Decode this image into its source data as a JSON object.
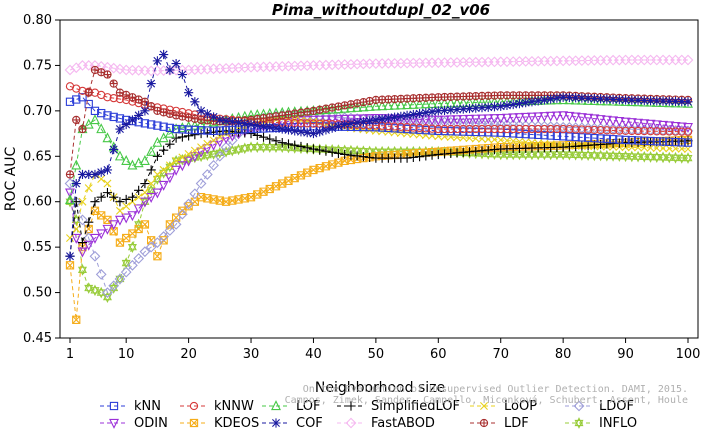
{
  "chart_data": {
    "type": "line",
    "title": "Pima_withoutdupl_02_v06",
    "xlabel": "Neighborhood size",
    "ylabel": "ROC AUC",
    "xlim": [
      1,
      100
    ],
    "ylim": [
      0.45,
      0.8
    ],
    "xticks": [
      1,
      10,
      20,
      30,
      40,
      50,
      60,
      70,
      80,
      90,
      100
    ],
    "yticks": [
      "0.45",
      "0.50",
      "0.55",
      "0.60",
      "0.65",
      "0.70",
      "0.75",
      "0.80"
    ],
    "grid": false,
    "legend_position": "bottom",
    "credit": "Campos, Zimek, Sander, Campello, Micenková, Schubert, Assent, Houle",
    "credit_line1": "On the Evaluation of Unsupervised Outlier Detection. DAMI, 2015.",
    "series": [
      {
        "name": "kNN",
        "color": "#2c3ed8",
        "marker": "square",
        "dash": "4,3",
        "points": [
          [
            1,
            0.71
          ],
          [
            3,
            0.715
          ],
          [
            5,
            0.7
          ],
          [
            7,
            0.695
          ],
          [
            10,
            0.69
          ],
          [
            14,
            0.685
          ],
          [
            18,
            0.68
          ],
          [
            24,
            0.678
          ],
          [
            30,
            0.68
          ],
          [
            40,
            0.683
          ],
          [
            50,
            0.682
          ],
          [
            60,
            0.678
          ],
          [
            70,
            0.676
          ],
          [
            80,
            0.672
          ],
          [
            90,
            0.668
          ],
          [
            100,
            0.665
          ]
        ]
      },
      {
        "name": "kNNW",
        "color": "#d63a3a",
        "marker": "circle",
        "dash": "4,3",
        "points": [
          [
            1,
            0.727
          ],
          [
            3,
            0.722
          ],
          [
            5,
            0.72
          ],
          [
            7,
            0.715
          ],
          [
            10,
            0.712
          ],
          [
            14,
            0.705
          ],
          [
            18,
            0.7
          ],
          [
            24,
            0.692
          ],
          [
            30,
            0.688
          ],
          [
            40,
            0.686
          ],
          [
            50,
            0.684
          ],
          [
            60,
            0.68
          ],
          [
            70,
            0.68
          ],
          [
            80,
            0.68
          ],
          [
            90,
            0.678
          ],
          [
            100,
            0.677
          ]
        ]
      },
      {
        "name": "LOF",
        "color": "#46c846",
        "marker": "triangle",
        "dash": "4,3",
        "points": [
          [
            1,
            0.602
          ],
          [
            2,
            0.64
          ],
          [
            3,
            0.68
          ],
          [
            5,
            0.69
          ],
          [
            7,
            0.67
          ],
          [
            9,
            0.65
          ],
          [
            11,
            0.64
          ],
          [
            13,
            0.645
          ],
          [
            15,
            0.665
          ],
          [
            18,
            0.68
          ],
          [
            22,
            0.685
          ],
          [
            26,
            0.69
          ],
          [
            30,
            0.695
          ],
          [
            35,
            0.698
          ],
          [
            40,
            0.7
          ],
          [
            50,
            0.705
          ],
          [
            60,
            0.708
          ],
          [
            70,
            0.71
          ],
          [
            80,
            0.712
          ],
          [
            90,
            0.71
          ],
          [
            100,
            0.708
          ]
        ]
      },
      {
        "name": "SimplifiedLOF",
        "color": "#000000",
        "marker": "plus",
        "dash": "4,3",
        "points": [
          [
            1,
            0.54
          ],
          [
            2,
            0.6
          ],
          [
            3,
            0.555
          ],
          [
            5,
            0.6
          ],
          [
            7,
            0.61
          ],
          [
            9,
            0.6
          ],
          [
            11,
            0.605
          ],
          [
            13,
            0.62
          ],
          [
            15,
            0.65
          ],
          [
            18,
            0.67
          ],
          [
            22,
            0.675
          ],
          [
            26,
            0.678
          ],
          [
            30,
            0.675
          ],
          [
            35,
            0.665
          ],
          [
            40,
            0.658
          ],
          [
            45,
            0.652
          ],
          [
            50,
            0.648
          ],
          [
            55,
            0.648
          ],
          [
            60,
            0.652
          ],
          [
            70,
            0.658
          ],
          [
            80,
            0.66
          ],
          [
            90,
            0.665
          ],
          [
            100,
            0.667
          ]
        ]
      },
      {
        "name": "LoOP",
        "color": "#e8d21e",
        "marker": "cross",
        "dash": "4,3",
        "points": [
          [
            1,
            0.56
          ],
          [
            2,
            0.57
          ],
          [
            3,
            0.6
          ],
          [
            5,
            0.63
          ],
          [
            7,
            0.62
          ],
          [
            9,
            0.59
          ],
          [
            11,
            0.6
          ],
          [
            13,
            0.61
          ],
          [
            15,
            0.63
          ],
          [
            18,
            0.645
          ],
          [
            22,
            0.66
          ],
          [
            26,
            0.675
          ],
          [
            30,
            0.685
          ],
          [
            35,
            0.692
          ],
          [
            40,
            0.688
          ],
          [
            45,
            0.682
          ],
          [
            50,
            0.678
          ],
          [
            60,
            0.672
          ],
          [
            70,
            0.668
          ],
          [
            80,
            0.662
          ],
          [
            90,
            0.66
          ],
          [
            100,
            0.658
          ]
        ]
      },
      {
        "name": "LDOF",
        "color": "#9e9ed8",
        "marker": "diamond",
        "dash": "4,3",
        "points": [
          [
            1,
            0.62
          ],
          [
            3,
            0.58
          ],
          [
            5,
            0.54
          ],
          [
            7,
            0.5
          ],
          [
            9,
            0.515
          ],
          [
            11,
            0.53
          ],
          [
            13,
            0.545
          ],
          [
            15,
            0.555
          ],
          [
            18,
            0.575
          ],
          [
            22,
            0.62
          ],
          [
            26,
            0.66
          ],
          [
            30,
            0.69
          ],
          [
            35,
            0.695
          ],
          [
            40,
            0.695
          ],
          [
            50,
            0.69
          ],
          [
            60,
            0.688
          ],
          [
            70,
            0.685
          ],
          [
            80,
            0.682
          ],
          [
            90,
            0.68
          ],
          [
            100,
            0.678
          ]
        ]
      },
      {
        "name": "ODIN",
        "color": "#9b30d8",
        "marker": "triangle-down",
        "dash": "4,3",
        "points": [
          [
            1,
            0.61
          ],
          [
            2,
            0.56
          ],
          [
            3,
            0.545
          ],
          [
            5,
            0.56
          ],
          [
            7,
            0.57
          ],
          [
            9,
            0.58
          ],
          [
            11,
            0.585
          ],
          [
            13,
            0.6
          ],
          [
            15,
            0.61
          ],
          [
            18,
            0.635
          ],
          [
            22,
            0.655
          ],
          [
            26,
            0.67
          ],
          [
            30,
            0.68
          ],
          [
            35,
            0.688
          ],
          [
            40,
            0.69
          ],
          [
            50,
            0.692
          ],
          [
            60,
            0.69
          ],
          [
            70,
            0.692
          ],
          [
            80,
            0.695
          ],
          [
            90,
            0.688
          ],
          [
            100,
            0.682
          ]
        ]
      },
      {
        "name": "KDEOS",
        "color": "#f5ad1a",
        "marker": "square-x",
        "dash": "4,3",
        "points": [
          [
            1,
            0.53
          ],
          [
            2,
            0.47
          ],
          [
            3,
            0.55
          ],
          [
            5,
            0.59
          ],
          [
            7,
            0.58
          ],
          [
            9,
            0.555
          ],
          [
            11,
            0.565
          ],
          [
            13,
            0.575
          ],
          [
            15,
            0.54
          ],
          [
            17,
            0.575
          ],
          [
            19,
            0.59
          ],
          [
            22,
            0.605
          ],
          [
            26,
            0.6
          ],
          [
            30,
            0.605
          ],
          [
            35,
            0.62
          ],
          [
            40,
            0.635
          ],
          [
            45,
            0.645
          ],
          [
            50,
            0.65
          ],
          [
            60,
            0.655
          ],
          [
            70,
            0.66
          ],
          [
            80,
            0.662
          ],
          [
            90,
            0.665
          ],
          [
            100,
            0.668
          ]
        ]
      },
      {
        "name": "COF",
        "color": "#1a1aa0",
        "marker": "asterisk",
        "dash": "4,3",
        "points": [
          [
            1,
            0.54
          ],
          [
            2,
            0.62
          ],
          [
            3,
            0.63
          ],
          [
            5,
            0.63
          ],
          [
            7,
            0.635
          ],
          [
            9,
            0.68
          ],
          [
            11,
            0.69
          ],
          [
            13,
            0.7
          ],
          [
            14,
            0.73
          ],
          [
            15,
            0.755
          ],
          [
            16,
            0.762
          ],
          [
            17,
            0.745
          ],
          [
            18,
            0.752
          ],
          [
            19,
            0.74
          ],
          [
            20,
            0.72
          ],
          [
            22,
            0.7
          ],
          [
            25,
            0.69
          ],
          [
            30,
            0.685
          ],
          [
            35,
            0.68
          ],
          [
            40,
            0.675
          ],
          [
            45,
            0.685
          ],
          [
            50,
            0.69
          ],
          [
            60,
            0.7
          ],
          [
            70,
            0.705
          ],
          [
            80,
            0.715
          ],
          [
            90,
            0.712
          ],
          [
            100,
            0.71
          ]
        ]
      },
      {
        "name": "FastABOD",
        "color": "#f5b8f0",
        "marker": "diamond",
        "dash": "4,3",
        "points": [
          [
            1,
            0.745
          ],
          [
            3,
            0.75
          ],
          [
            5,
            0.75
          ],
          [
            7,
            0.748
          ],
          [
            10,
            0.745
          ],
          [
            14,
            0.744
          ],
          [
            20,
            0.745
          ],
          [
            30,
            0.748
          ],
          [
            40,
            0.75
          ],
          [
            50,
            0.752
          ],
          [
            60,
            0.753
          ],
          [
            70,
            0.754
          ],
          [
            80,
            0.755
          ],
          [
            90,
            0.756
          ],
          [
            100,
            0.756
          ]
        ]
      },
      {
        "name": "LDF",
        "color": "#a82f2f",
        "marker": "circle-plus",
        "dash": "4,3",
        "points": [
          [
            1,
            0.63
          ],
          [
            2,
            0.69
          ],
          [
            3,
            0.68
          ],
          [
            4,
            0.72
          ],
          [
            5,
            0.745
          ],
          [
            7,
            0.74
          ],
          [
            9,
            0.72
          ],
          [
            11,
            0.715
          ],
          [
            13,
            0.71
          ],
          [
            15,
            0.7
          ],
          [
            18,
            0.695
          ],
          [
            22,
            0.69
          ],
          [
            26,
            0.688
          ],
          [
            30,
            0.69
          ],
          [
            35,
            0.695
          ],
          [
            40,
            0.7
          ],
          [
            50,
            0.712
          ],
          [
            60,
            0.715
          ],
          [
            70,
            0.717
          ],
          [
            80,
            0.717
          ],
          [
            90,
            0.714
          ],
          [
            100,
            0.712
          ]
        ]
      },
      {
        "name": "INFLO",
        "color": "#98cc3a",
        "marker": "star",
        "dash": "4,3",
        "points": [
          [
            1,
            0.6
          ],
          [
            2,
            0.58
          ],
          [
            3,
            0.525
          ],
          [
            4,
            0.505
          ],
          [
            6,
            0.5
          ],
          [
            7,
            0.495
          ],
          [
            9,
            0.515
          ],
          [
            11,
            0.55
          ],
          [
            13,
            0.6
          ],
          [
            15,
            0.625
          ],
          [
            18,
            0.645
          ],
          [
            22,
            0.65
          ],
          [
            26,
            0.655
          ],
          [
            30,
            0.66
          ],
          [
            35,
            0.66
          ],
          [
            40,
            0.658
          ],
          [
            50,
            0.655
          ],
          [
            60,
            0.655
          ],
          [
            70,
            0.652
          ],
          [
            80,
            0.652
          ],
          [
            90,
            0.65
          ],
          [
            100,
            0.648
          ]
        ]
      }
    ]
  }
}
